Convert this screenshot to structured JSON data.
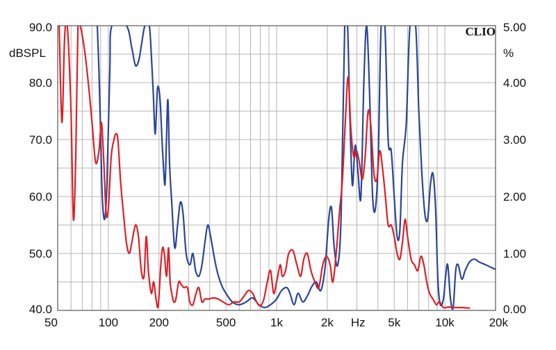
{
  "chart_data": {
    "type": "line",
    "x_scale": "log",
    "xlim": [
      50,
      20000
    ],
    "ylim_left": [
      40,
      90
    ],
    "ylim_right": [
      0,
      5
    ],
    "grid": true,
    "brand": "CLIO",
    "left_unit": "dBSPL",
    "right_unit": "%",
    "x_unit": "Hz",
    "x_ticks": [
      {
        "value": 50,
        "label": "50"
      },
      {
        "value": 100,
        "label": "100"
      },
      {
        "value": 200,
        "label": "200"
      },
      {
        "value": 500,
        "label": "500"
      },
      {
        "value": 1000,
        "label": "1k"
      },
      {
        "value": 2000,
        "label": "2k"
      },
      {
        "value": 5000,
        "label": "5k"
      },
      {
        "value": 10000,
        "label": "10k"
      },
      {
        "value": 20000,
        "label": "20k"
      }
    ],
    "y_left_ticks": [
      {
        "value": 90,
        "label": "90.0"
      },
      {
        "value": 80,
        "label": "80.0"
      },
      {
        "value": 70,
        "label": "70.0"
      },
      {
        "value": 60,
        "label": "60.0"
      },
      {
        "value": 50,
        "label": "50.0"
      },
      {
        "value": 40,
        "label": "40.0"
      }
    ],
    "y_right_ticks": [
      {
        "value": 5,
        "label": "5.00"
      },
      {
        "value": 4,
        "label": "4.00"
      },
      {
        "value": 3,
        "label": "3.00"
      },
      {
        "value": 2,
        "label": "2.00"
      },
      {
        "value": 1,
        "label": "1.00"
      },
      {
        "value": 0,
        "label": "0.00"
      }
    ],
    "colors": {
      "grid": "#b4b4b4",
      "frame": "#555555",
      "series_1": "#2a4597",
      "series_2": "#dc2027"
    },
    "series": [
      {
        "key": "series_1",
        "axis": "right",
        "points": [
          [
            86,
            5.0
          ],
          [
            88,
            4.2
          ],
          [
            90,
            3.1
          ],
          [
            92,
            2.0
          ],
          [
            95,
            1.6
          ],
          [
            98,
            2.2
          ],
          [
            102,
            4.2
          ],
          [
            105,
            5.0
          ],
          [
            128,
            5.0
          ],
          [
            138,
            4.6
          ],
          [
            145,
            4.3
          ],
          [
            152,
            4.4
          ],
          [
            158,
            4.7
          ],
          [
            165,
            5.0
          ],
          [
            175,
            5.0
          ],
          [
            180,
            4.5
          ],
          [
            185,
            3.8
          ],
          [
            190,
            3.1
          ],
          [
            196,
            3.9
          ],
          [
            203,
            3.7
          ],
          [
            210,
            2.8
          ],
          [
            217,
            2.2
          ],
          [
            221,
            2.9
          ],
          [
            226,
            3.7
          ],
          [
            231,
            2.6
          ],
          [
            238,
            1.9
          ],
          [
            248,
            1.1
          ],
          [
            258,
            1.5
          ],
          [
            268,
            1.9
          ],
          [
            278,
            1.7
          ],
          [
            290,
            1.0
          ],
          [
            305,
            0.8
          ],
          [
            318,
            1.0
          ],
          [
            330,
            0.7
          ],
          [
            345,
            0.6
          ],
          [
            360,
            0.8
          ],
          [
            375,
            1.2
          ],
          [
            390,
            1.5
          ],
          [
            405,
            1.3
          ],
          [
            422,
            1.0
          ],
          [
            442,
            0.7
          ],
          [
            470,
            0.45
          ],
          [
            500,
            0.3
          ],
          [
            545,
            0.15
          ],
          [
            600,
            0.1
          ],
          [
            660,
            0.15
          ],
          [
            720,
            0.22
          ],
          [
            785,
            0.1
          ],
          [
            850,
            0.05
          ],
          [
            920,
            0.1
          ],
          [
            1000,
            0.2
          ],
          [
            1070,
            0.35
          ],
          [
            1150,
            0.4
          ],
          [
            1200,
            0.3
          ],
          [
            1270,
            0.1
          ],
          [
            1340,
            0.3
          ],
          [
            1430,
            0.15
          ],
          [
            1520,
            0.25
          ],
          [
            1620,
            0.42
          ],
          [
            1720,
            0.5
          ],
          [
            1830,
            0.35
          ],
          [
            1940,
            0.75
          ],
          [
            2040,
            1.6
          ],
          [
            2120,
            1.8
          ],
          [
            2200,
            1.1
          ],
          [
            2310,
            0.8
          ],
          [
            2420,
            1.7
          ],
          [
            2540,
            5.0
          ],
          [
            2640,
            5.0
          ],
          [
            2720,
            3.5
          ],
          [
            2820,
            2.2
          ],
          [
            2930,
            2.9
          ],
          [
            3050,
            2.4
          ],
          [
            3170,
            2.0
          ],
          [
            3300,
            4.0
          ],
          [
            3430,
            5.0
          ],
          [
            3570,
            3.8
          ],
          [
            3720,
            2.0
          ],
          [
            3870,
            1.8
          ],
          [
            4020,
            2.7
          ],
          [
            4180,
            5.0
          ],
          [
            4400,
            5.0
          ],
          [
            4600,
            3.0
          ],
          [
            4800,
            2.8
          ],
          [
            5000,
            2.0
          ],
          [
            5200,
            1.3
          ],
          [
            5400,
            1.4
          ],
          [
            5600,
            2.6
          ],
          [
            5900,
            3.3
          ],
          [
            6200,
            5.0
          ],
          [
            6700,
            5.0
          ],
          [
            7000,
            3.5
          ],
          [
            7300,
            2.4
          ],
          [
            7600,
            1.7
          ],
          [
            7900,
            1.6
          ],
          [
            8200,
            2.2
          ],
          [
            8500,
            2.4
          ],
          [
            8800,
            1.8
          ],
          [
            9100,
            0.5
          ],
          [
            9400,
            0.1
          ],
          [
            9800,
            0.2
          ],
          [
            10100,
            0.6
          ],
          [
            10400,
            0.8
          ],
          [
            10800,
            0.2
          ],
          [
            11200,
            0.05
          ],
          [
            11600,
            0.7
          ],
          [
            12000,
            0.8
          ],
          [
            12600,
            0.55
          ],
          [
            13200,
            0.7
          ],
          [
            14000,
            0.85
          ],
          [
            15000,
            0.9
          ],
          [
            16000,
            0.85
          ],
          [
            17500,
            0.8
          ],
          [
            20000,
            0.72
          ]
        ]
      },
      {
        "key": "series_2",
        "axis": "left",
        "points": [
          [
            51,
            90
          ],
          [
            53,
            73
          ],
          [
            55,
            88
          ],
          [
            57,
            90
          ],
          [
            60,
            75
          ],
          [
            62,
            56
          ],
          [
            64,
            67
          ],
          [
            66,
            90
          ],
          [
            68,
            90
          ],
          [
            72,
            86
          ],
          [
            76,
            80
          ],
          [
            80,
            73
          ],
          [
            84,
            66
          ],
          [
            88,
            68
          ],
          [
            91,
            73
          ],
          [
            94,
            66
          ],
          [
            97,
            57
          ],
          [
            100,
            58
          ],
          [
            104,
            67
          ],
          [
            108,
            70
          ],
          [
            111,
            71
          ],
          [
            114,
            70
          ],
          [
            118,
            63
          ],
          [
            123,
            57
          ],
          [
            128,
            52
          ],
          [
            133,
            50
          ],
          [
            138,
            52
          ],
          [
            142,
            54
          ],
          [
            146,
            55
          ],
          [
            151,
            53
          ],
          [
            157,
            47
          ],
          [
            163,
            46
          ],
          [
            168,
            53
          ],
          [
            173,
            47
          ],
          [
            180,
            43
          ],
          [
            186,
            45
          ],
          [
            192,
            42
          ],
          [
            198,
            40.8
          ],
          [
            205,
            48
          ],
          [
            210,
            51
          ],
          [
            215,
            50
          ],
          [
            222,
            46
          ],
          [
            228,
            51
          ],
          [
            233,
            45
          ],
          [
            238,
            43
          ],
          [
            245,
            41.5
          ],
          [
            252,
            42
          ],
          [
            262,
            45
          ],
          [
            272,
            44.5
          ],
          [
            282,
            44
          ],
          [
            295,
            44
          ],
          [
            305,
            41.5
          ],
          [
            318,
            41
          ],
          [
            332,
            43
          ],
          [
            345,
            44
          ],
          [
            360,
            41.5
          ],
          [
            375,
            42
          ],
          [
            395,
            42
          ],
          [
            420,
            42.2
          ],
          [
            450,
            42
          ],
          [
            480,
            41.5
          ],
          [
            520,
            41
          ],
          [
            560,
            41.5
          ],
          [
            600,
            41.5
          ],
          [
            640,
            42.5
          ],
          [
            680,
            43.5
          ],
          [
            720,
            43
          ],
          [
            760,
            41.5
          ],
          [
            800,
            40.8
          ],
          [
            840,
            42
          ],
          [
            880,
            45
          ],
          [
            920,
            47
          ],
          [
            960,
            43
          ],
          [
            1000,
            45
          ],
          [
            1050,
            48
          ],
          [
            1080,
            46
          ],
          [
            1130,
            47
          ],
          [
            1180,
            50
          ],
          [
            1250,
            50.5
          ],
          [
            1320,
            48
          ],
          [
            1390,
            46
          ],
          [
            1450,
            49
          ],
          [
            1520,
            50
          ],
          [
            1600,
            47
          ],
          [
            1690,
            45
          ],
          [
            1780,
            44
          ],
          [
            1880,
            48
          ],
          [
            1980,
            49.5
          ],
          [
            2080,
            48
          ],
          [
            2160,
            45
          ],
          [
            2260,
            50
          ],
          [
            2360,
            57
          ],
          [
            2460,
            63
          ],
          [
            2560,
            73
          ],
          [
            2660,
            81
          ],
          [
            2760,
            72
          ],
          [
            2870,
            67
          ],
          [
            2990,
            68
          ],
          [
            3100,
            66
          ],
          [
            3230,
            63
          ],
          [
            3360,
            67
          ],
          [
            3500,
            75
          ],
          [
            3640,
            72
          ],
          [
            3790,
            64
          ],
          [
            3940,
            63
          ],
          [
            4100,
            68
          ],
          [
            4260,
            65
          ],
          [
            4430,
            60
          ],
          [
            4600,
            55
          ],
          [
            4800,
            55
          ],
          [
            5000,
            53
          ],
          [
            5200,
            50
          ],
          [
            5400,
            49
          ],
          [
            5600,
            52
          ],
          [
            5800,
            56
          ],
          [
            6000,
            53
          ],
          [
            6300,
            49
          ],
          [
            6600,
            48
          ],
          [
            6900,
            47
          ],
          [
            7200,
            49.5
          ],
          [
            7500,
            48
          ],
          [
            7800,
            45
          ],
          [
            8100,
            43
          ],
          [
            8500,
            42
          ],
          [
            8900,
            41
          ],
          [
            9300,
            41.5
          ],
          [
            9800,
            40.5
          ],
          [
            10500,
            40.6
          ],
          [
            11500,
            40.5
          ],
          [
            12500,
            40.5
          ],
          [
            14000,
            40.4
          ]
        ]
      }
    ]
  }
}
